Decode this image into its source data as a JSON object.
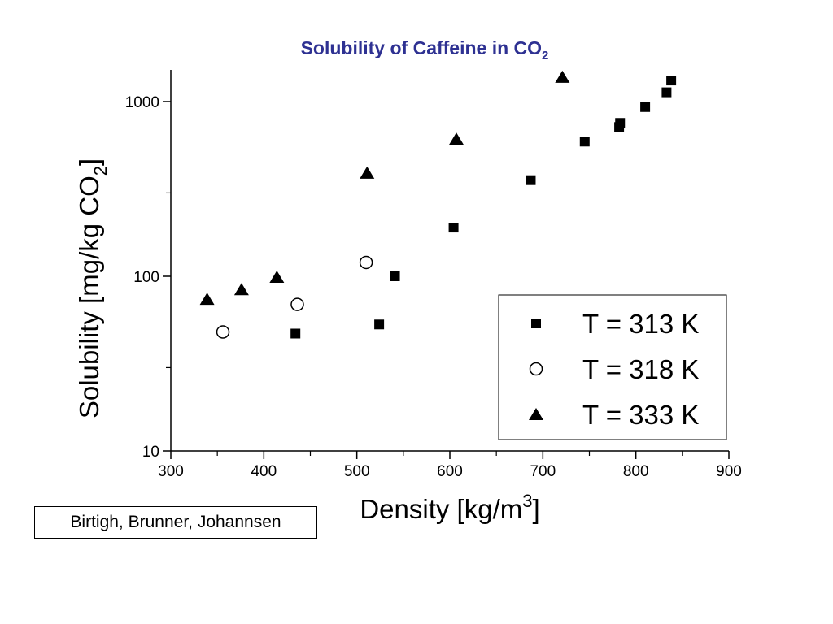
{
  "chart_data": {
    "type": "scatter",
    "title": "Solubility of Caffeine in CO",
    "title_subscript": "2",
    "xlabel": "Density [kg/m",
    "xlabel_superscript": "3",
    "xlabel_suffix": "]",
    "ylabel": "Solubility [mg/kg CO",
    "ylabel_subscript": "2",
    "ylabel_suffix": "]",
    "xlim": [
      300,
      900
    ],
    "ylim": [
      10,
      1500
    ],
    "yscale": "log",
    "xticks": [
      "300",
      "400",
      "500",
      "600",
      "700",
      "800",
      "900"
    ],
    "yticks": [
      "10",
      "100",
      "1000"
    ],
    "grid": false,
    "legend_position": "right",
    "series": [
      {
        "name": "T = 313 K",
        "marker": "square-filled",
        "x": [
          434,
          524,
          541,
          604,
          687,
          745,
          782,
          783,
          810,
          833,
          838
        ],
        "y": [
          47,
          53,
          100,
          190,
          355,
          590,
          715,
          755,
          930,
          1130,
          1320
        ]
      },
      {
        "name": "T = 318 K",
        "marker": "circle-open",
        "x": [
          356,
          436,
          510
        ],
        "y": [
          48,
          69,
          120
        ]
      },
      {
        "name": "T = 333 K",
        "marker": "triangle-filled",
        "x": [
          339,
          376,
          414,
          511,
          607,
          721
        ],
        "y": [
          74,
          84,
          99,
          390,
          610,
          1380
        ]
      }
    ]
  },
  "credit": "Birtigh, Brunner, Johannsen"
}
